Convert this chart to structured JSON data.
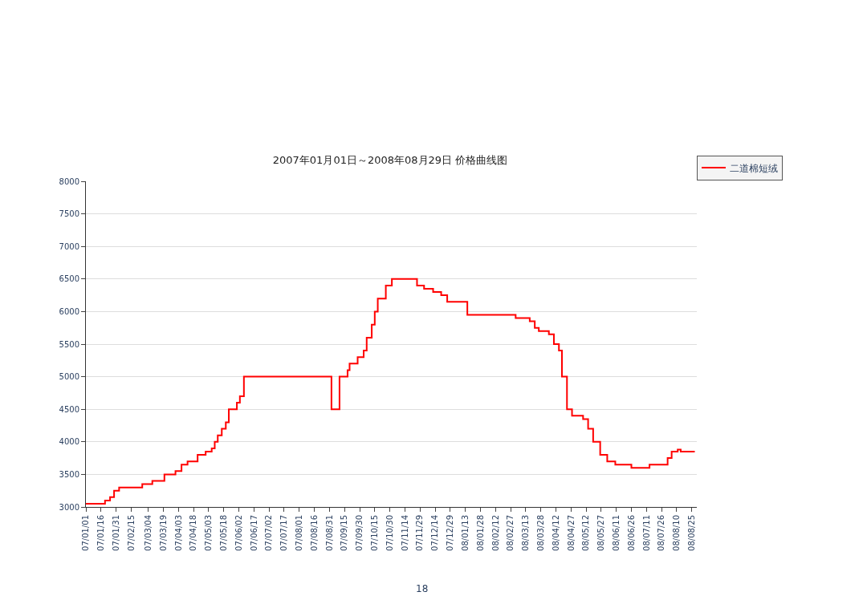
{
  "chart_data": {
    "type": "step",
    "title": "2007年01月01日～2008年08月29日 价格曲线图",
    "x": [
      "2007-01-01",
      "2007-01-20",
      "2007-01-25",
      "2007-01-29",
      "2007-02-03",
      "2007-02-26",
      "2007-03-08",
      "2007-03-20",
      "2007-03-31",
      "2007-04-06",
      "2007-04-12",
      "2007-04-22",
      "2007-04-30",
      "2007-05-06",
      "2007-05-09",
      "2007-05-12",
      "2007-05-16",
      "2007-05-20",
      "2007-05-23",
      "2007-05-31",
      "2007-06-03",
      "2007-06-07",
      "2007-09-02",
      "2007-09-10",
      "2007-09-18",
      "2007-09-20",
      "2007-09-28",
      "2007-10-04",
      "2007-10-07",
      "2007-10-12",
      "2007-10-15",
      "2007-10-18",
      "2007-10-26",
      "2007-11-01",
      "2007-11-26",
      "2007-12-03",
      "2007-12-12",
      "2007-12-20",
      "2007-12-26",
      "2008-01-15",
      "2008-03-03",
      "2008-03-17",
      "2008-03-22",
      "2008-03-26",
      "2008-04-05",
      "2008-04-10",
      "2008-04-15",
      "2008-04-18",
      "2008-04-23",
      "2008-04-28",
      "2008-05-09",
      "2008-05-14",
      "2008-05-19",
      "2008-05-26",
      "2008-06-02",
      "2008-06-10",
      "2008-06-26",
      "2008-07-14",
      "2008-08-01",
      "2008-08-05",
      "2008-08-11",
      "2008-08-14",
      "2008-08-28"
    ],
    "series": [
      {
        "name": "二道棉短绒",
        "color": "#ff0000",
        "values": [
          3050,
          3100,
          3150,
          3250,
          3300,
          3350,
          3400,
          3500,
          3550,
          3650,
          3700,
          3800,
          3850,
          3900,
          4000,
          4100,
          4200,
          4300,
          4500,
          4600,
          4700,
          5000,
          4500,
          5000,
          5100,
          5200,
          5300,
          5400,
          5600,
          5800,
          6000,
          6200,
          6400,
          6500,
          6400,
          6350,
          6300,
          6250,
          6150,
          5950,
          5900,
          5850,
          5750,
          5700,
          5650,
          5500,
          5400,
          5000,
          4500,
          4400,
          4350,
          4200,
          4000,
          3800,
          3700,
          3650,
          3600,
          3650,
          3750,
          3850,
          3880,
          3850,
          3850
        ]
      }
    ],
    "xlim": [
      "2007-01-01",
      "2008-08-30"
    ],
    "xticks": [
      {
        "value": "2007-01-01",
        "label": "07/01/01"
      },
      {
        "value": "2007-01-16",
        "label": "07/01/16"
      },
      {
        "value": "2007-01-31",
        "label": "07/01/31"
      },
      {
        "value": "2007-02-15",
        "label": "07/02/15"
      },
      {
        "value": "2007-03-04",
        "label": "07/03/04"
      },
      {
        "value": "2007-03-19",
        "label": "07/03/19"
      },
      {
        "value": "2007-04-03",
        "label": "07/04/03"
      },
      {
        "value": "2007-04-18",
        "label": "07/04/18"
      },
      {
        "value": "2007-05-03",
        "label": "07/05/03"
      },
      {
        "value": "2007-05-18",
        "label": "07/05/18"
      },
      {
        "value": "2007-06-02",
        "label": "07/06/02"
      },
      {
        "value": "2007-06-17",
        "label": "07/06/17"
      },
      {
        "value": "2007-07-02",
        "label": "07/07/02"
      },
      {
        "value": "2007-07-17",
        "label": "07/07/17"
      },
      {
        "value": "2007-08-01",
        "label": "07/08/01"
      },
      {
        "value": "2007-08-16",
        "label": "07/08/16"
      },
      {
        "value": "2007-08-31",
        "label": "07/08/31"
      },
      {
        "value": "2007-09-15",
        "label": "07/09/15"
      },
      {
        "value": "2007-09-30",
        "label": "07/09/30"
      },
      {
        "value": "2007-10-15",
        "label": "07/10/15"
      },
      {
        "value": "2007-10-30",
        "label": "07/10/30"
      },
      {
        "value": "2007-11-14",
        "label": "07/11/14"
      },
      {
        "value": "2007-11-29",
        "label": "07/11/29"
      },
      {
        "value": "2007-12-14",
        "label": "07/12/14"
      },
      {
        "value": "2007-12-29",
        "label": "07/12/29"
      },
      {
        "value": "2008-01-13",
        "label": "08/01/13"
      },
      {
        "value": "2008-01-28",
        "label": "08/01/28"
      },
      {
        "value": "2008-02-12",
        "label": "08/02/12"
      },
      {
        "value": "2008-02-27",
        "label": "08/02/27"
      },
      {
        "value": "2008-03-13",
        "label": "08/03/13"
      },
      {
        "value": "2008-03-28",
        "label": "08/03/28"
      },
      {
        "value": "2008-04-12",
        "label": "08/04/12"
      },
      {
        "value": "2008-04-27",
        "label": "08/04/27"
      },
      {
        "value": "2008-05-12",
        "label": "08/05/12"
      },
      {
        "value": "2008-05-27",
        "label": "08/05/27"
      },
      {
        "value": "2008-06-11",
        "label": "08/06/11"
      },
      {
        "value": "2008-06-26",
        "label": "08/06/26"
      },
      {
        "value": "2008-07-11",
        "label": "08/07/11"
      },
      {
        "value": "2008-07-26",
        "label": "08/07/26"
      },
      {
        "value": "2008-08-10",
        "label": "08/08/10"
      },
      {
        "value": "2008-08-25",
        "label": "08/08/25"
      }
    ],
    "ylim": [
      3000,
      8000
    ],
    "yticks": [
      3000,
      3500,
      4000,
      4500,
      5000,
      5500,
      6000,
      6500,
      7000,
      7500,
      8000
    ],
    "grid": "y",
    "legend": "top right",
    "marker": "none",
    "line_style": "solid",
    "annotations": [
      "18"
    ]
  }
}
